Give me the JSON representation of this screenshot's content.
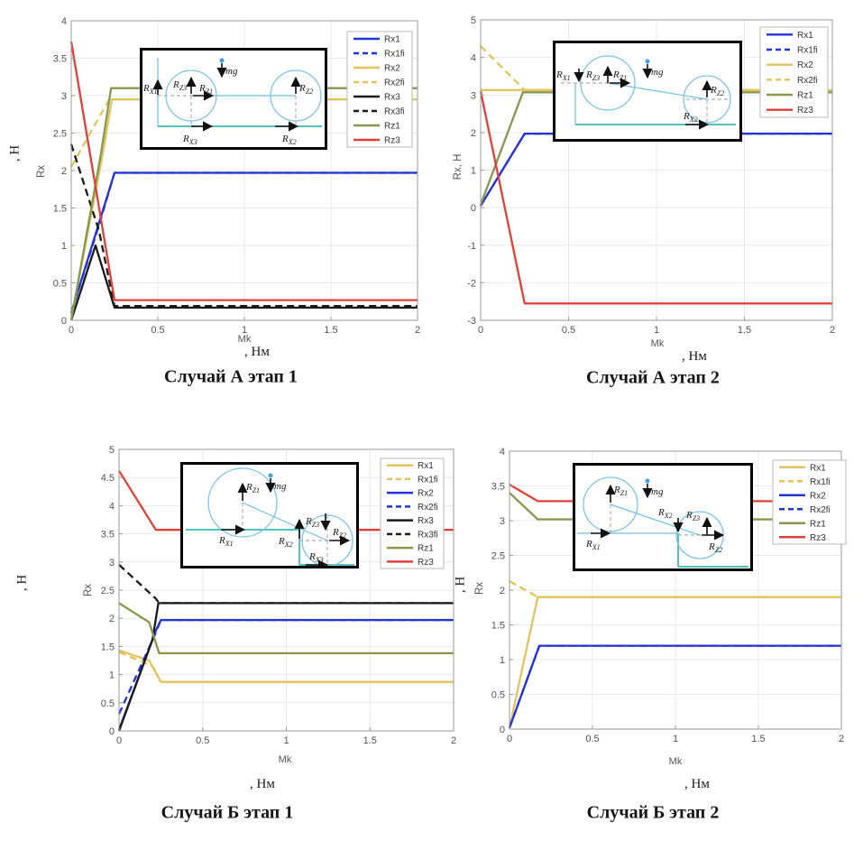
{
  "colors": {
    "blue": "#2233d8",
    "yellow": "#e3c35e",
    "black": "#1a1a1a",
    "green": "#85984d",
    "red": "#e04038",
    "grid": "#e8e8e8",
    "axis": "#999999"
  },
  "force_labels": {
    "rx1": {
      "m": "R",
      "s": "X1"
    },
    "rx2": {
      "m": "R",
      "s": "X2"
    },
    "rx3": {
      "m": "R",
      "s": "X3"
    },
    "rz1": {
      "m": "R",
      "s": "Z1"
    },
    "rz2": {
      "m": "R",
      "s": "Z2"
    },
    "rz3": {
      "m": "R",
      "s": "Z3"
    },
    "mg": "mg"
  },
  "chart_data": [
    {
      "id": "a1",
      "type": "line",
      "caption": "Случай А этап 1",
      "xlabel": "Mk",
      "xunit": ", Нм",
      "ylabel": "Rx",
      "yunit": ", Н",
      "xlim": [
        0,
        2
      ],
      "ylim": [
        0,
        4
      ],
      "xticks": [
        0,
        0.5,
        1,
        1.5,
        2
      ],
      "yticks": [
        0,
        0.5,
        1,
        1.5,
        2,
        2.5,
        3,
        3.5,
        4
      ],
      "grid": true,
      "legend_position": "top-right",
      "series": [
        {
          "name": "Rx1",
          "color": "blue",
          "dash": false,
          "points": [
            [
              0,
              0.1
            ],
            [
              0.25,
              1.97
            ],
            [
              2,
              1.97
            ]
          ]
        },
        {
          "name": "Rx1fi",
          "color": "blue",
          "dash": true,
          "points": [
            [
              0,
              0.1
            ],
            [
              0.16,
              1.27
            ],
            [
              0.25,
              1.97
            ],
            [
              2,
              1.97
            ]
          ]
        },
        {
          "name": "Rx2",
          "color": "yellow",
          "dash": false,
          "points": [
            [
              0,
              0.02
            ],
            [
              0.18,
              2.2
            ],
            [
              0.235,
              2.95
            ],
            [
              2,
              2.95
            ]
          ]
        },
        {
          "name": "Rx2fi",
          "color": "yellow",
          "dash": true,
          "points": [
            [
              0,
              2.05
            ],
            [
              0.22,
              2.95
            ],
            [
              2,
              2.95
            ]
          ]
        },
        {
          "name": "Rx3",
          "color": "black",
          "dash": false,
          "points": [
            [
              0,
              0
            ],
            [
              0.14,
              1.0
            ],
            [
              0.25,
              0.17
            ],
            [
              2,
              0.17
            ]
          ]
        },
        {
          "name": "Rx3fi",
          "color": "black",
          "dash": true,
          "points": [
            [
              0,
              2.35
            ],
            [
              0.16,
              1.2
            ],
            [
              0.25,
              0.19
            ],
            [
              2,
              0.19
            ]
          ]
        },
        {
          "name": "Rz1",
          "color": "green",
          "dash": false,
          "points": [
            [
              0,
              0
            ],
            [
              0.17,
              2.2
            ],
            [
              0.23,
              3.1
            ],
            [
              2,
              3.1
            ]
          ]
        },
        {
          "name": "Rz3",
          "color": "red",
          "dash": false,
          "points": [
            [
              0,
              3.72
            ],
            [
              0.25,
              0.27
            ],
            [
              2,
              0.27
            ]
          ]
        }
      ]
    },
    {
      "id": "a2",
      "type": "line",
      "caption": "Случай А этап 2",
      "xlabel": "Mk",
      "xunit": ", Нм",
      "ylabel": "Rx, Н",
      "yunit": "",
      "xlim": [
        0,
        2
      ],
      "ylim": [
        -3,
        5
      ],
      "xticks": [
        0,
        0.5,
        1,
        1.5,
        2
      ],
      "yticks": [
        -3,
        -2,
        -1,
        0,
        1,
        2,
        3,
        4,
        5
      ],
      "grid": true,
      "legend_position": "top-right",
      "series": [
        {
          "name": "Rx1",
          "color": "blue",
          "dash": false,
          "points": [
            [
              0,
              0.05
            ],
            [
              0.25,
              1.97
            ],
            [
              2,
              1.97
            ]
          ]
        },
        {
          "name": "Rx1fi",
          "color": "blue",
          "dash": true,
          "points": [
            [
              0,
              0.05
            ],
            [
              0.25,
              1.97
            ],
            [
              2,
              1.97
            ]
          ]
        },
        {
          "name": "Rx2",
          "color": "yellow",
          "dash": false,
          "points": [
            [
              0,
              3.13
            ],
            [
              2,
              3.13
            ]
          ]
        },
        {
          "name": "Rx2fi",
          "color": "yellow",
          "dash": true,
          "points": [
            [
              0,
              4.3
            ],
            [
              0.25,
              3.13
            ],
            [
              2,
              3.13
            ]
          ]
        },
        {
          "name": "Rz1",
          "color": "green",
          "dash": false,
          "points": [
            [
              0,
              0.08
            ],
            [
              0.24,
              3.07
            ],
            [
              2,
              3.07
            ]
          ]
        },
        {
          "name": "Rz3",
          "color": "red",
          "dash": false,
          "points": [
            [
              0,
              3.1
            ],
            [
              0.25,
              -2.55
            ],
            [
              2,
              -2.55
            ]
          ]
        }
      ]
    },
    {
      "id": "b1",
      "type": "line",
      "caption": "Случай Б этап 1",
      "xlabel": "Mk",
      "xunit": ", Нм",
      "ylabel": "Rx",
      "yunit": ", Н",
      "xlim": [
        0,
        2
      ],
      "ylim": [
        0,
        5
      ],
      "xticks": [
        0,
        0.5,
        1,
        1.5,
        2
      ],
      "yticks": [
        0,
        0.5,
        1,
        1.5,
        2,
        2.5,
        3,
        3.5,
        4,
        4.5,
        5
      ],
      "grid": true,
      "legend_position": "top-right",
      "series": [
        {
          "name": "Rx1",
          "color": "yellow",
          "dash": false,
          "points": [
            [
              0,
              1.43
            ],
            [
              0.18,
              1.25
            ],
            [
              0.25,
              0.87
            ],
            [
              2,
              0.87
            ]
          ]
        },
        {
          "name": "Rx1fi",
          "color": "yellow",
          "dash": true,
          "points": [
            [
              0,
              1.4
            ],
            [
              0.2,
              1.15
            ],
            [
              0.25,
              0.87
            ],
            [
              2,
              0.87
            ]
          ]
        },
        {
          "name": "Rx2",
          "color": "blue",
          "dash": false,
          "points": [
            [
              0,
              0.02
            ],
            [
              0.22,
              1.78
            ],
            [
              0.25,
              1.97
            ],
            [
              2,
              1.97
            ]
          ]
        },
        {
          "name": "Rx2fi",
          "color": "blue",
          "dash": true,
          "points": [
            [
              0,
              0.3
            ],
            [
              0.21,
              1.68
            ],
            [
              0.25,
              1.97
            ],
            [
              2,
              1.97
            ]
          ]
        },
        {
          "name": "Rx3",
          "color": "black",
          "dash": false,
          "points": [
            [
              0,
              0
            ],
            [
              0.2,
              1.62
            ],
            [
              0.235,
              2.27
            ],
            [
              2,
              2.27
            ]
          ]
        },
        {
          "name": "Rx3fi",
          "color": "black",
          "dash": true,
          "points": [
            [
              0,
              2.95
            ],
            [
              0.22,
              2.35
            ],
            [
              0.24,
              2.27
            ],
            [
              2,
              2.27
            ]
          ]
        },
        {
          "name": "Rz1",
          "color": "green",
          "dash": false,
          "points": [
            [
              0,
              2.27
            ],
            [
              0.18,
              1.93
            ],
            [
              0.24,
              1.38
            ],
            [
              2,
              1.38
            ]
          ]
        },
        {
          "name": "Rz3",
          "color": "red",
          "dash": false,
          "points": [
            [
              0,
              4.62
            ],
            [
              0.22,
              3.57
            ],
            [
              2,
              3.57
            ]
          ]
        }
      ]
    },
    {
      "id": "b2",
      "type": "line",
      "caption": "Случай Б этап 2",
      "xlabel": "Mk",
      "xunit": ", Нм",
      "ylabel": "Rx",
      "yunit": ", Н",
      "xlim": [
        0,
        2
      ],
      "ylim": [
        0,
        4
      ],
      "xticks": [
        0,
        0.5,
        1,
        1.5,
        2
      ],
      "yticks": [
        0,
        0.5,
        1,
        1.5,
        2,
        2.5,
        3,
        3.5,
        4
      ],
      "grid": true,
      "legend_position": "top-right",
      "series": [
        {
          "name": "Rx1",
          "color": "yellow",
          "dash": false,
          "points": [
            [
              0,
              0.02
            ],
            [
              0.17,
              1.9
            ],
            [
              2,
              1.9
            ]
          ]
        },
        {
          "name": "Rx1fi",
          "color": "yellow",
          "dash": true,
          "points": [
            [
              0,
              2.13
            ],
            [
              0.17,
              1.9
            ],
            [
              2,
              1.9
            ]
          ]
        },
        {
          "name": "Rx2",
          "color": "blue",
          "dash": false,
          "points": [
            [
              0,
              0.02
            ],
            [
              0.18,
              1.2
            ],
            [
              2,
              1.2
            ]
          ]
        },
        {
          "name": "Rx2fi",
          "color": "blue",
          "dash": true,
          "points": [
            [
              0,
              0.02
            ],
            [
              0.18,
              1.2
            ],
            [
              2,
              1.2
            ]
          ]
        },
        {
          "name": "Rz1",
          "color": "green",
          "dash": false,
          "points": [
            [
              0,
              3.4
            ],
            [
              0.17,
              3.02
            ],
            [
              2,
              3.02
            ]
          ]
        },
        {
          "name": "Rz3",
          "color": "red",
          "dash": false,
          "points": [
            [
              0,
              3.52
            ],
            [
              0.17,
              3.28
            ],
            [
              2,
              3.28
            ]
          ]
        }
      ]
    }
  ]
}
